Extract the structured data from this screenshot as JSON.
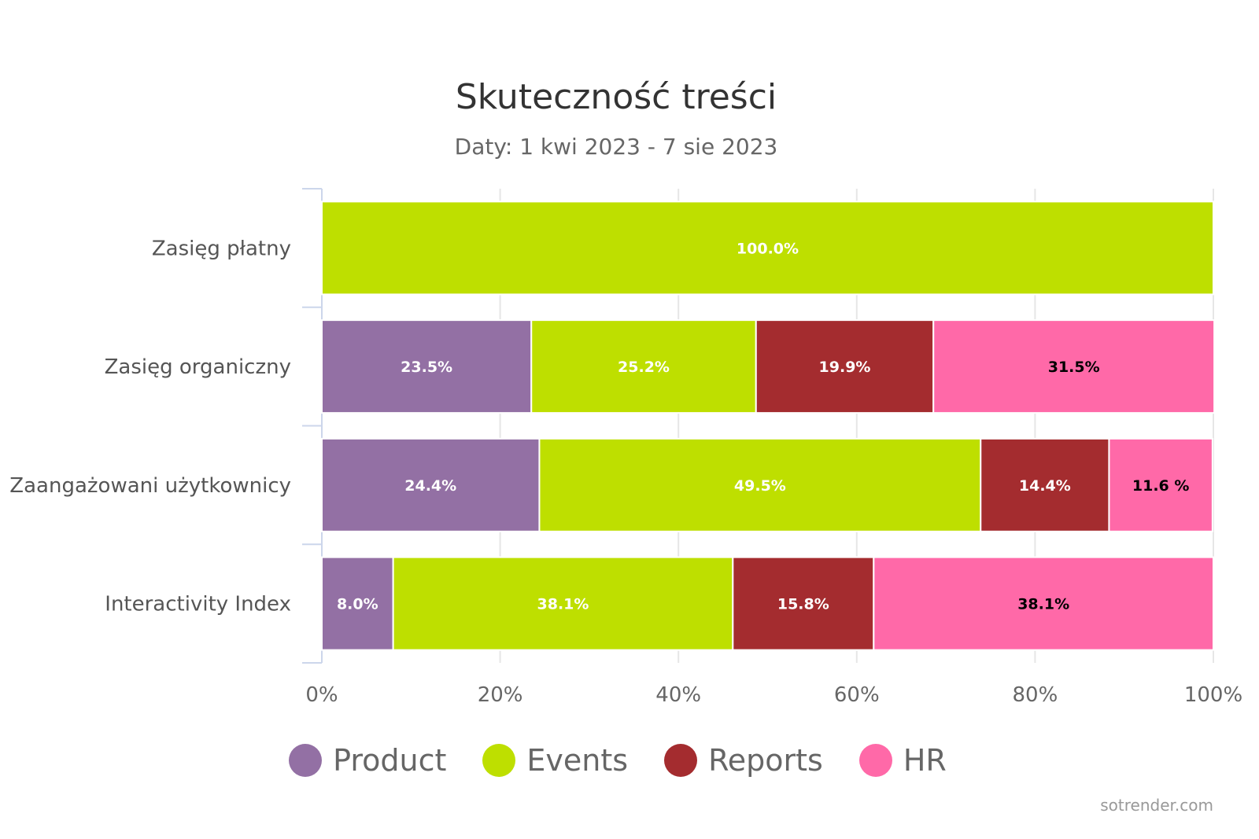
{
  "chart_data": {
    "type": "bar",
    "orientation": "horizontal",
    "stacked": "percent",
    "title": "Skuteczność treści",
    "subtitle": "Daty: 1 kwi 2023 - 7 sie 2023",
    "categories": [
      "Zasięg płatny",
      "Zasięg organiczny",
      "Zaangażowani użytkownicy",
      "Interactivity Index"
    ],
    "series": [
      {
        "name": "Product",
        "color": "#9370a4",
        "label_color": "#ffffff",
        "values": [
          0,
          23.5,
          24.4,
          8.0
        ],
        "labels": [
          "",
          "23.5%",
          "24.4%",
          "8.0%"
        ]
      },
      {
        "name": "Events",
        "color": "#bedf00",
        "label_color": "#ffffff",
        "values": [
          100.0,
          25.2,
          49.5,
          38.1
        ],
        "labels": [
          "100.0%",
          "25.2%",
          "49.5%",
          "38.1%"
        ]
      },
      {
        "name": "Reports",
        "color": "#a42c2f",
        "label_color": "#ffffff",
        "values": [
          0,
          19.9,
          14.4,
          15.8
        ],
        "labels": [
          "",
          "19.9%",
          "14.4%",
          "15.8%"
        ]
      },
      {
        "name": "HR",
        "color": "#ff69a8",
        "label_color": "#000000",
        "values": [
          0,
          31.5,
          11.6,
          38.1
        ],
        "labels": [
          "",
          "31.5%",
          "11.6 %",
          "38.1%"
        ]
      }
    ],
    "xlim": [
      0,
      100
    ],
    "xticks": [
      "0%",
      "20%",
      "40%",
      "60%",
      "80%",
      "100%"
    ],
    "grid": true,
    "legend_position": "bottom"
  },
  "credit": "sotrender.com"
}
